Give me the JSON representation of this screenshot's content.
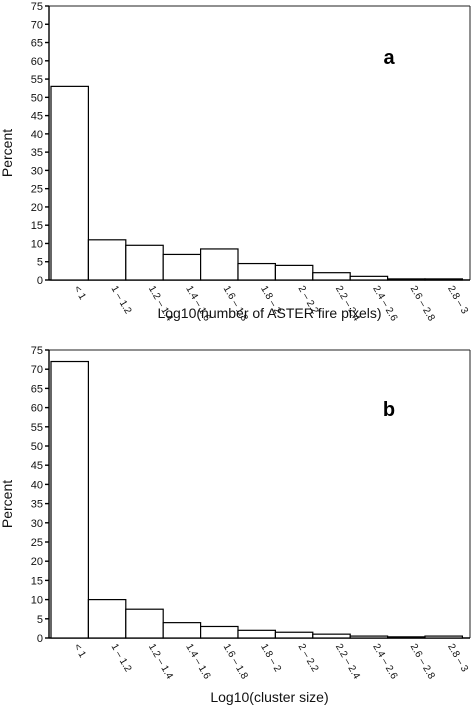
{
  "chart_data": [
    {
      "type": "bar",
      "panel_label": "a",
      "title": "",
      "ylabel": "Percent",
      "xlabel": "Log10(number of ASTER fire pixels)",
      "ylim": [
        0,
        75
      ],
      "yticks": [
        0,
        5,
        10,
        15,
        20,
        25,
        30,
        35,
        40,
        45,
        50,
        55,
        60,
        65,
        70,
        75
      ],
      "categories": [
        "< 1",
        "1 – 1.2",
        "1.2 – 1.4",
        "1.4 – 1.6",
        "1.6 – 1.8",
        "1.8 – 2",
        "2 – 2.2",
        "2.2 – 2.4",
        "2.4 – 2.6",
        "2.6 – 2.8",
        "2.8 – 3"
      ],
      "values": [
        53,
        11,
        9.5,
        7,
        8.5,
        4.5,
        4,
        2,
        1,
        0.3,
        0.3
      ]
    },
    {
      "type": "bar",
      "panel_label": "b",
      "title": "",
      "ylabel": "Percent",
      "xlabel": "Log10(cluster size)",
      "ylim": [
        0,
        75
      ],
      "yticks": [
        0,
        5,
        10,
        15,
        20,
        25,
        30,
        35,
        40,
        45,
        50,
        55,
        60,
        65,
        70,
        75
      ],
      "categories": [
        "< 1",
        "1 – 1.2",
        "1.2 – 1.4",
        "1.4 – 1.6",
        "1.6 – 1.8",
        "1.8 – 2",
        "2 – 2.2",
        "2.2 – 2.4",
        "2.4 – 2.6",
        "2.6 – 2.8",
        "2.8 – 3"
      ],
      "values": [
        72,
        10,
        7.5,
        4,
        3,
        2,
        1.5,
        1,
        0.5,
        0.3,
        0.5
      ]
    }
  ]
}
